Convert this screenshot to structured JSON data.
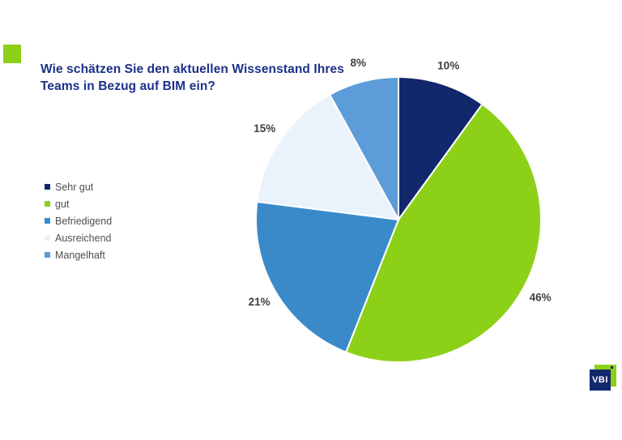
{
  "title": {
    "line1": "Wie schätzen Sie den aktuellen Wissenstand Ihres",
    "line2": "Teams in Bezug auf BIM ein?",
    "color": "#1c3188"
  },
  "colors": {
    "accent_green": "#8dd018",
    "brand_navy": "#12286c",
    "label_gray": "#404040",
    "legend_text_gray": "#4f4f4f",
    "background": "#ffffff"
  },
  "chart_data": {
    "type": "pie",
    "title": "Wie schätzen Sie den aktuellen Wissenstand Ihres Teams in Bezug auf BIM ein?",
    "categories": [
      "Sehr gut",
      "gut",
      "Befriedigend",
      "Ausreichend",
      "Mangelhaft"
    ],
    "values": [
      10,
      46,
      21,
      15,
      8
    ],
    "labels": [
      "10%",
      "46%",
      "21%",
      "15%",
      "8%"
    ],
    "colors": [
      "#12286c",
      "#8dd018",
      "#3a8aca",
      "#eaf2fb",
      "#5c9cd9"
    ],
    "start_angle_deg": 0,
    "direction": "clockwise",
    "slice_border_color": "#ffffff",
    "label_color": "#404040",
    "legend_position": "left",
    "grid": false
  },
  "logo": {
    "text": "VBI",
    "green": "#8dd018",
    "navy": "#12286c",
    "text_color": "#ffffff"
  }
}
